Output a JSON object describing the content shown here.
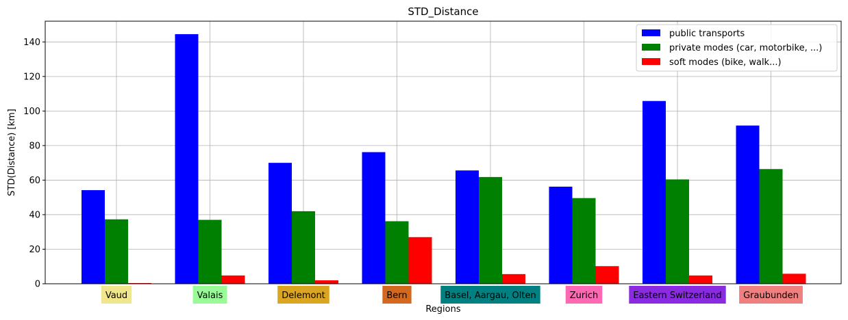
{
  "chart_data": {
    "type": "bar",
    "title": "STD_Distance",
    "xlabel": "Regions",
    "ylabel": "STD(Distance) [km]",
    "ylim": [
      0,
      152
    ],
    "yticks": [
      0,
      20,
      40,
      60,
      80,
      100,
      120,
      140
    ],
    "grid": true,
    "legend_position": "top-right",
    "categories": [
      "Vaud",
      "Valais",
      "Delemont",
      "Bern",
      "Basel, Aargau, Olten",
      "Zurich",
      "Eastern Switzerland",
      "Graubunden"
    ],
    "category_colors": [
      "#f0e68c",
      "#98fb98",
      "#daa520",
      "#d2691e",
      "#008080",
      "#ff69b4",
      "#8a2be2",
      "#f08080"
    ],
    "series": [
      {
        "name": "public transports",
        "color": "#0000ff",
        "values": [
          54.2,
          144.5,
          70.0,
          76.2,
          65.6,
          56.2,
          105.8,
          91.6
        ]
      },
      {
        "name": "private modes (car, motorbike, ...)",
        "color": "#008000",
        "values": [
          37.3,
          37.0,
          42.0,
          36.2,
          61.8,
          49.6,
          60.4,
          66.4
        ]
      },
      {
        "name": "soft modes (bike, walk...)",
        "color": "#ff0000",
        "values": [
          0.4,
          4.8,
          2.0,
          27.0,
          5.6,
          10.2,
          4.8,
          5.8
        ]
      }
    ]
  }
}
